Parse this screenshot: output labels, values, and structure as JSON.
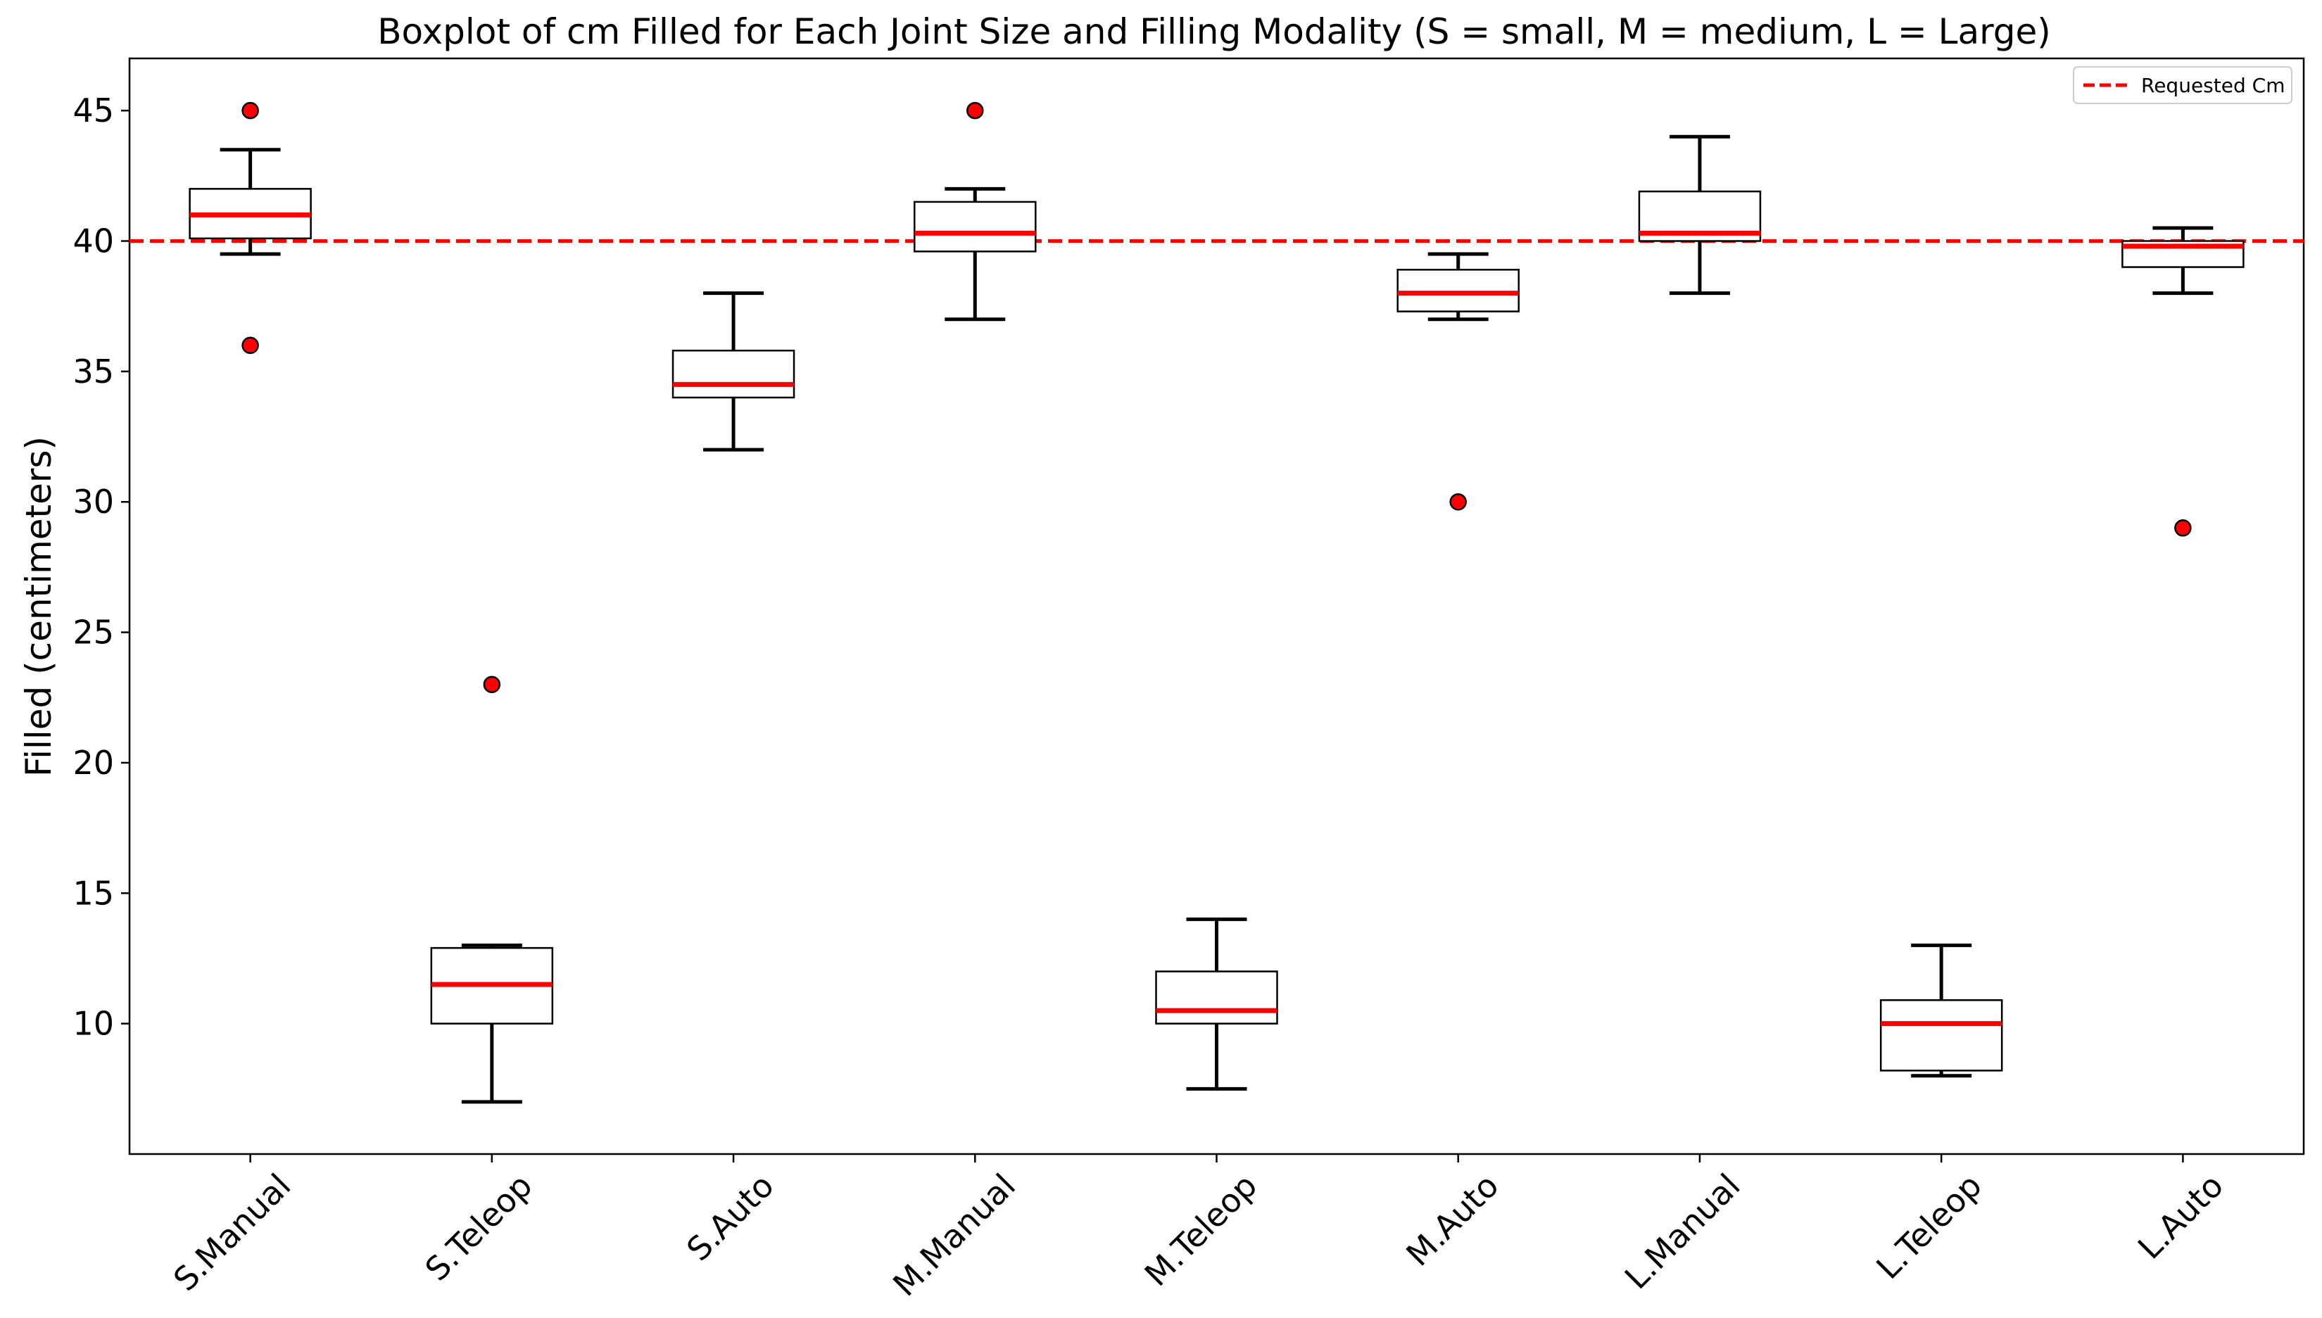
{
  "chart_data": {
    "type": "boxplot",
    "title": "Boxplot of cm Filled for Each Joint Size and Filling Modality (S = small, M = medium, L = Large)",
    "xlabel": "",
    "ylabel": "Filled (centimeters)",
    "ylim": [
      5,
      47
    ],
    "yticks": [
      10,
      15,
      20,
      25,
      30,
      35,
      40,
      45
    ],
    "grid": false,
    "legend": {
      "position": "top-right",
      "entries": [
        "Requested Cm"
      ]
    },
    "reference_line": {
      "label": "Requested Cm",
      "value": 40,
      "style": "dashed",
      "color": "#ff0000"
    },
    "colors": {
      "median": "#ff0000",
      "outlier_fill": "#ff0000",
      "box": "#000000"
    },
    "categories": [
      "S.Manual",
      "S.Teleop",
      "S.Auto",
      "M.Manual",
      "M.Teleop",
      "M.Auto",
      "L.Manual",
      "L.Teleop",
      "L.Auto"
    ],
    "boxes": [
      {
        "category": "S.Manual",
        "whisker_low": 39.5,
        "q1": 40.1,
        "median": 41.0,
        "q3": 42.0,
        "whisker_high": 43.5,
        "outliers": [
          45,
          36
        ]
      },
      {
        "category": "S.Teleop",
        "whisker_low": 7.0,
        "q1": 10.0,
        "median": 11.5,
        "q3": 12.9,
        "whisker_high": 13.0,
        "outliers": [
          23
        ]
      },
      {
        "category": "S.Auto",
        "whisker_low": 32.0,
        "q1": 34.0,
        "median": 34.5,
        "q3": 35.8,
        "whisker_high": 38.0,
        "outliers": []
      },
      {
        "category": "M.Manual",
        "whisker_low": 37.0,
        "q1": 39.6,
        "median": 40.3,
        "q3": 41.5,
        "whisker_high": 42.0,
        "outliers": [
          45
        ]
      },
      {
        "category": "M.Teleop",
        "whisker_low": 7.5,
        "q1": 10.0,
        "median": 10.5,
        "q3": 12.0,
        "whisker_high": 14.0,
        "outliers": []
      },
      {
        "category": "M.Auto",
        "whisker_low": 37.0,
        "q1": 37.3,
        "median": 38.0,
        "q3": 38.9,
        "whisker_high": 39.5,
        "outliers": [
          30
        ]
      },
      {
        "category": "L.Manual",
        "whisker_low": 38.0,
        "q1": 40.0,
        "median": 40.3,
        "q3": 41.9,
        "whisker_high": 44.0,
        "outliers": []
      },
      {
        "category": "L.Teleop",
        "whisker_low": 8.0,
        "q1": 8.2,
        "median": 10.0,
        "q3": 10.9,
        "whisker_high": 13.0,
        "outliers": []
      },
      {
        "category": "L.Auto",
        "whisker_low": 38.0,
        "q1": 39.0,
        "median": 39.8,
        "q3": 40.0,
        "whisker_high": 40.5,
        "outliers": [
          29
        ]
      }
    ]
  }
}
